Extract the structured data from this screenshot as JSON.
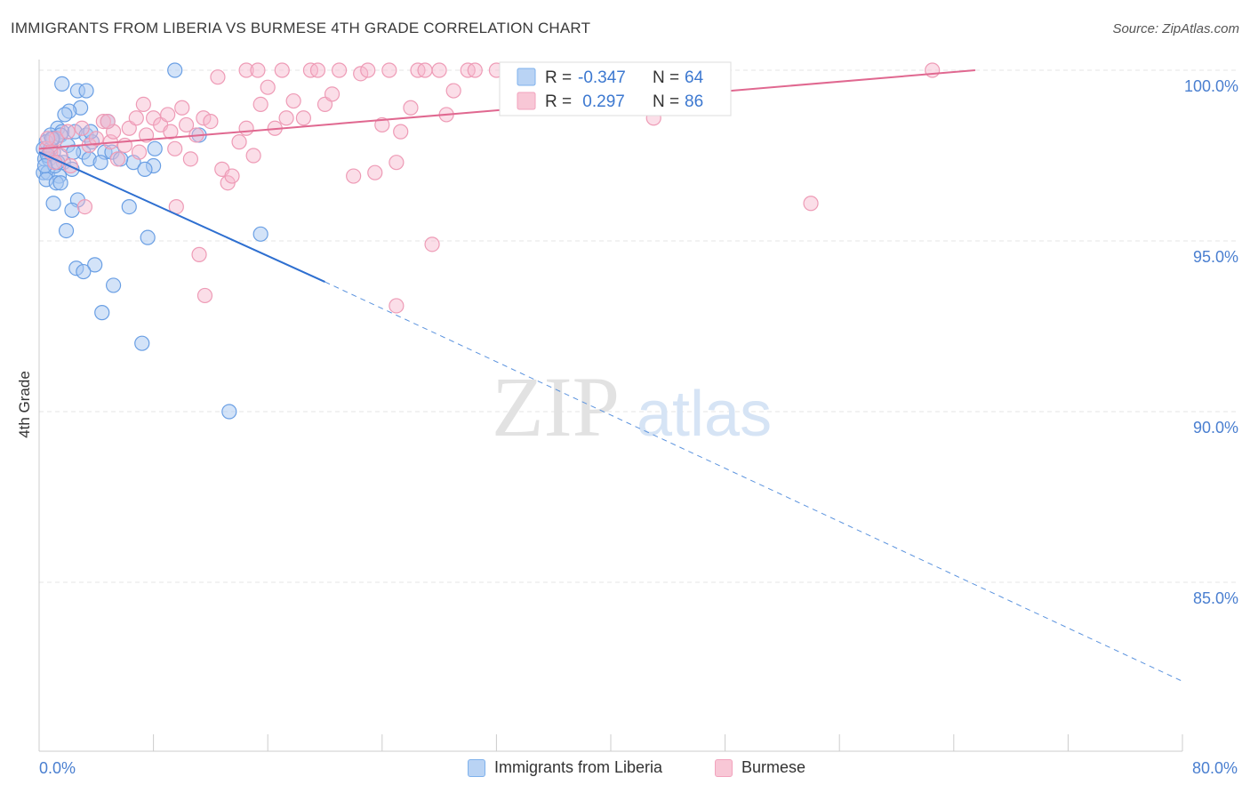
{
  "header": {
    "title": "IMMIGRANTS FROM LIBERIA VS BURMESE 4TH GRADE CORRELATION CHART",
    "source": "Source: ZipAtlas.com"
  },
  "watermark": {
    "zip": "ZIP",
    "atlas": "atlas"
  },
  "legend_box": {
    "rows": [
      {
        "r_label": "R = ",
        "r_value": "-0.347",
        "n_label": "N = ",
        "n_value": "64",
        "color": "#7eb1ec"
      },
      {
        "r_label": "R = ",
        "r_value": " 0.297",
        "n_label": "N = ",
        "n_value": "86",
        "color": "#f2a3bd"
      }
    ]
  },
  "chart_data": {
    "type": "scatter",
    "title": "IMMIGRANTS FROM LIBERIA VS BURMESE 4TH GRADE CORRELATION CHART",
    "xlabel": "",
    "ylabel": "4th Grade",
    "xlim": [
      0,
      80
    ],
    "ylim": [
      80.5,
      101
    ],
    "x_tick_labels": [
      "0.0%",
      "80.0%"
    ],
    "y_ticks": [
      85,
      90,
      95,
      100
    ],
    "y_tick_labels": [
      "85.0%",
      "90.0%",
      "95.0%",
      "100.0%"
    ],
    "grid": true,
    "legend_position": "bottom",
    "colors": {
      "liberia": "#4a8ee0",
      "liberia_fill": "#a8c8f2",
      "burmese": "#e06890",
      "burmese_fill": "#f6b6cb",
      "axis_text": "#4a7fd0"
    },
    "series": [
      {
        "name": "Immigrants from Liberia",
        "R": -0.347,
        "N": 64,
        "trend": {
          "x": [
            0,
            20,
            80
          ],
          "y": [
            97.6,
            93.8,
            82.1
          ],
          "solid_until_x": 20
        },
        "points": [
          [
            9.5,
            100.0
          ],
          [
            1.6,
            99.6
          ],
          [
            2.7,
            99.4
          ],
          [
            3.3,
            99.4
          ],
          [
            2.9,
            98.9
          ],
          [
            2.1,
            98.8
          ],
          [
            1.8,
            98.7
          ],
          [
            4.8,
            98.5
          ],
          [
            1.3,
            98.3
          ],
          [
            1.6,
            98.2
          ],
          [
            2.5,
            98.2
          ],
          [
            3.3,
            98.1
          ],
          [
            0.8,
            98.1
          ],
          [
            1.0,
            98.0
          ],
          [
            1.5,
            98.1
          ],
          [
            11.2,
            98.1
          ],
          [
            3.7,
            97.9
          ],
          [
            0.5,
            97.9
          ],
          [
            0.3,
            97.7
          ],
          [
            1.0,
            97.6
          ],
          [
            0.8,
            97.7
          ],
          [
            8.1,
            97.7
          ],
          [
            3.1,
            97.6
          ],
          [
            0.6,
            97.5
          ],
          [
            4.6,
            97.6
          ],
          [
            5.1,
            97.6
          ],
          [
            0.4,
            97.4
          ],
          [
            0.7,
            97.4
          ],
          [
            3.5,
            97.4
          ],
          [
            4.3,
            97.3
          ],
          [
            1.7,
            97.3
          ],
          [
            6.6,
            97.3
          ],
          [
            8.0,
            97.2
          ],
          [
            7.4,
            97.1
          ],
          [
            2.3,
            97.1
          ],
          [
            0.3,
            97.0
          ],
          [
            0.6,
            97.0
          ],
          [
            1.4,
            96.9
          ],
          [
            0.5,
            96.8
          ],
          [
            1.2,
            96.7
          ],
          [
            1.5,
            96.7
          ],
          [
            2.7,
            96.2
          ],
          [
            1.0,
            96.1
          ],
          [
            6.3,
            96.0
          ],
          [
            2.3,
            95.9
          ],
          [
            1.9,
            95.3
          ],
          [
            15.5,
            95.2
          ],
          [
            7.6,
            95.1
          ],
          [
            3.9,
            94.3
          ],
          [
            2.6,
            94.2
          ],
          [
            3.1,
            94.1
          ],
          [
            5.2,
            93.7
          ],
          [
            4.4,
            92.9
          ],
          [
            7.2,
            92.0
          ],
          [
            13.3,
            90.0
          ],
          [
            0.6,
            97.5
          ],
          [
            1.1,
            97.2
          ],
          [
            2.0,
            97.8
          ],
          [
            3.6,
            98.2
          ],
          [
            0.9,
            98.0
          ],
          [
            1.3,
            97.3
          ],
          [
            0.4,
            97.2
          ],
          [
            2.4,
            97.6
          ],
          [
            5.7,
            97.4
          ]
        ]
      },
      {
        "name": "Burmese",
        "R": 0.297,
        "N": 86,
        "trend": {
          "x": [
            0,
            65.5
          ],
          "y": [
            97.7,
            100.0
          ]
        },
        "points": [
          [
            0.5,
            97.7
          ],
          [
            0.8,
            97.6
          ],
          [
            1.2,
            98.0
          ],
          [
            1.5,
            97.5
          ],
          [
            2.0,
            98.2
          ],
          [
            2.2,
            97.2
          ],
          [
            3.0,
            98.3
          ],
          [
            3.5,
            97.8
          ],
          [
            4.0,
            98.0
          ],
          [
            4.5,
            98.5
          ],
          [
            5.0,
            97.9
          ],
          [
            5.2,
            98.2
          ],
          [
            5.5,
            97.4
          ],
          [
            6.0,
            97.8
          ],
          [
            6.3,
            98.3
          ],
          [
            6.8,
            98.6
          ],
          [
            7.0,
            97.6
          ],
          [
            7.5,
            98.1
          ],
          [
            8.0,
            98.6
          ],
          [
            8.5,
            98.4
          ],
          [
            9.0,
            98.7
          ],
          [
            9.2,
            98.2
          ],
          [
            9.5,
            97.7
          ],
          [
            10.0,
            98.9
          ],
          [
            10.3,
            98.4
          ],
          [
            10.6,
            97.4
          ],
          [
            11.0,
            98.1
          ],
          [
            11.5,
            98.6
          ],
          [
            12.0,
            98.5
          ],
          [
            12.5,
            99.8
          ],
          [
            12.8,
            97.1
          ],
          [
            13.2,
            96.7
          ],
          [
            13.5,
            96.9
          ],
          [
            14.0,
            97.9
          ],
          [
            14.5,
            98.3
          ],
          [
            15.0,
            97.5
          ],
          [
            15.5,
            99.0
          ],
          [
            16.0,
            99.5
          ],
          [
            16.5,
            98.3
          ],
          [
            17.0,
            100.0
          ],
          [
            17.3,
            98.6
          ],
          [
            17.8,
            99.1
          ],
          [
            18.5,
            98.6
          ],
          [
            19.0,
            100.0
          ],
          [
            19.5,
            100.0
          ],
          [
            20.0,
            99.0
          ],
          [
            20.5,
            99.3
          ],
          [
            21.0,
            100.0
          ],
          [
            22.0,
            96.9
          ],
          [
            22.5,
            99.9
          ],
          [
            23.0,
            100.0
          ],
          [
            23.5,
            97.0
          ],
          [
            24.0,
            98.4
          ],
          [
            24.5,
            100.0
          ],
          [
            25.0,
            97.3
          ],
          [
            25.3,
            98.2
          ],
          [
            26.0,
            98.9
          ],
          [
            26.5,
            100.0
          ],
          [
            27.0,
            100.0
          ],
          [
            27.5,
            94.9
          ],
          [
            28.0,
            100.0
          ],
          [
            28.5,
            98.7
          ],
          [
            29.0,
            99.4
          ],
          [
            30.0,
            100.0
          ],
          [
            30.5,
            100.0
          ],
          [
            32.0,
            100.0
          ],
          [
            33.0,
            99.8
          ],
          [
            34.5,
            100.0
          ],
          [
            35.0,
            100.0
          ],
          [
            37.0,
            100.0
          ],
          [
            38.0,
            99.6
          ],
          [
            40.0,
            100.0
          ],
          [
            43.0,
            98.6
          ],
          [
            54.0,
            96.1
          ],
          [
            62.5,
            100.0
          ],
          [
            3.2,
            96.0
          ],
          [
            4.8,
            98.5
          ],
          [
            7.3,
            99.0
          ],
          [
            9.6,
            96.0
          ],
          [
            11.2,
            94.6
          ],
          [
            11.6,
            93.4
          ],
          [
            25.0,
            93.1
          ],
          [
            14.5,
            100.0
          ],
          [
            15.3,
            100.0
          ],
          [
            0.6,
            98.0
          ],
          [
            1.1,
            97.3
          ]
        ]
      }
    ]
  },
  "legend_bottom": {
    "items": [
      {
        "label": "Immigrants from Liberia",
        "color": "#a8c8f2",
        "border": "#7eb1ec"
      },
      {
        "label": "Burmese",
        "color": "#f6c2d3",
        "border": "#f2a3bd"
      }
    ]
  }
}
